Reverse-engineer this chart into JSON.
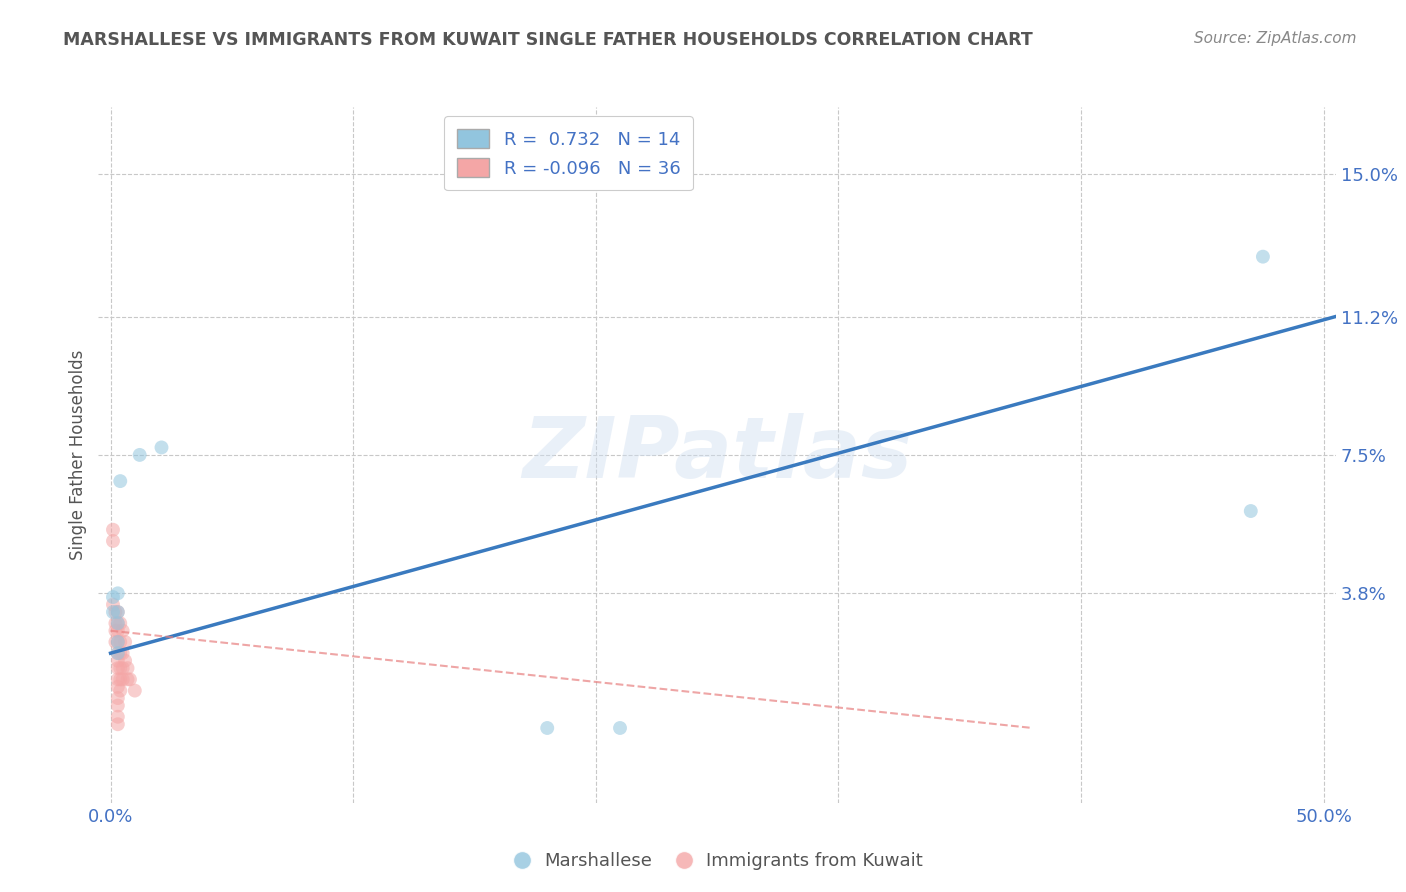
{
  "title": "MARSHALLESE VS IMMIGRANTS FROM KUWAIT SINGLE FATHER HOUSEHOLDS CORRELATION CHART",
  "source": "Source: ZipAtlas.com",
  "ylabel_label": "Single Father Households",
  "y_tick_labels": [
    "3.8%",
    "7.5%",
    "11.2%",
    "15.0%"
  ],
  "y_tick_values": [
    0.038,
    0.075,
    0.112,
    0.15
  ],
  "xlim": [
    -0.005,
    0.505
  ],
  "ylim": [
    -0.018,
    0.168
  ],
  "blue_R": 0.732,
  "blue_N": 14,
  "pink_R": -0.096,
  "pink_N": 36,
  "blue_color": "#92c5de",
  "pink_color": "#f4a6a6",
  "blue_line_color": "#3a7abf",
  "pink_line_color": "#e88080",
  "background_color": "#ffffff",
  "grid_color": "#c8c8c8",
  "watermark": "ZIPatlas",
  "title_color": "#555555",
  "axis_label_color": "#4472c4",
  "blue_scatter": [
    [
      0.003,
      0.033
    ],
    [
      0.004,
      0.068
    ],
    [
      0.012,
      0.075
    ],
    [
      0.021,
      0.077
    ],
    [
      0.003,
      0.038
    ],
    [
      0.001,
      0.033
    ],
    [
      0.003,
      0.025
    ],
    [
      0.001,
      0.037
    ],
    [
      0.003,
      0.03
    ],
    [
      0.18,
      0.002
    ],
    [
      0.21,
      0.002
    ],
    [
      0.47,
      0.06
    ],
    [
      0.475,
      0.128
    ],
    [
      0.003,
      0.022
    ]
  ],
  "pink_scatter": [
    [
      0.001,
      0.055
    ],
    [
      0.001,
      0.052
    ],
    [
      0.001,
      0.035
    ],
    [
      0.002,
      0.033
    ],
    [
      0.002,
      0.03
    ],
    [
      0.002,
      0.028
    ],
    [
      0.002,
      0.025
    ],
    [
      0.003,
      0.033
    ],
    [
      0.003,
      0.03
    ],
    [
      0.003,
      0.028
    ],
    [
      0.003,
      0.025
    ],
    [
      0.003,
      0.022
    ],
    [
      0.003,
      0.02
    ],
    [
      0.003,
      0.018
    ],
    [
      0.003,
      0.015
    ],
    [
      0.003,
      0.013
    ],
    [
      0.003,
      0.01
    ],
    [
      0.003,
      0.008
    ],
    [
      0.003,
      0.005
    ],
    [
      0.003,
      0.003
    ],
    [
      0.004,
      0.03
    ],
    [
      0.004,
      0.025
    ],
    [
      0.004,
      0.022
    ],
    [
      0.004,
      0.018
    ],
    [
      0.004,
      0.015
    ],
    [
      0.004,
      0.012
    ],
    [
      0.005,
      0.028
    ],
    [
      0.005,
      0.022
    ],
    [
      0.005,
      0.018
    ],
    [
      0.005,
      0.015
    ],
    [
      0.006,
      0.025
    ],
    [
      0.006,
      0.02
    ],
    [
      0.007,
      0.018
    ],
    [
      0.007,
      0.015
    ],
    [
      0.008,
      0.015
    ],
    [
      0.01,
      0.012
    ]
  ],
  "blue_line_x": [
    0.0,
    0.505
  ],
  "blue_line_y_start": 0.022,
  "blue_line_y_end": 0.112,
  "pink_line_x": [
    0.0,
    0.38
  ],
  "pink_line_y_start": 0.028,
  "pink_line_y_end": 0.002,
  "legend_blue_label": "Marshallese",
  "legend_pink_label": "Immigrants from Kuwait",
  "marker_size": 100,
  "marker_alpha": 0.55
}
